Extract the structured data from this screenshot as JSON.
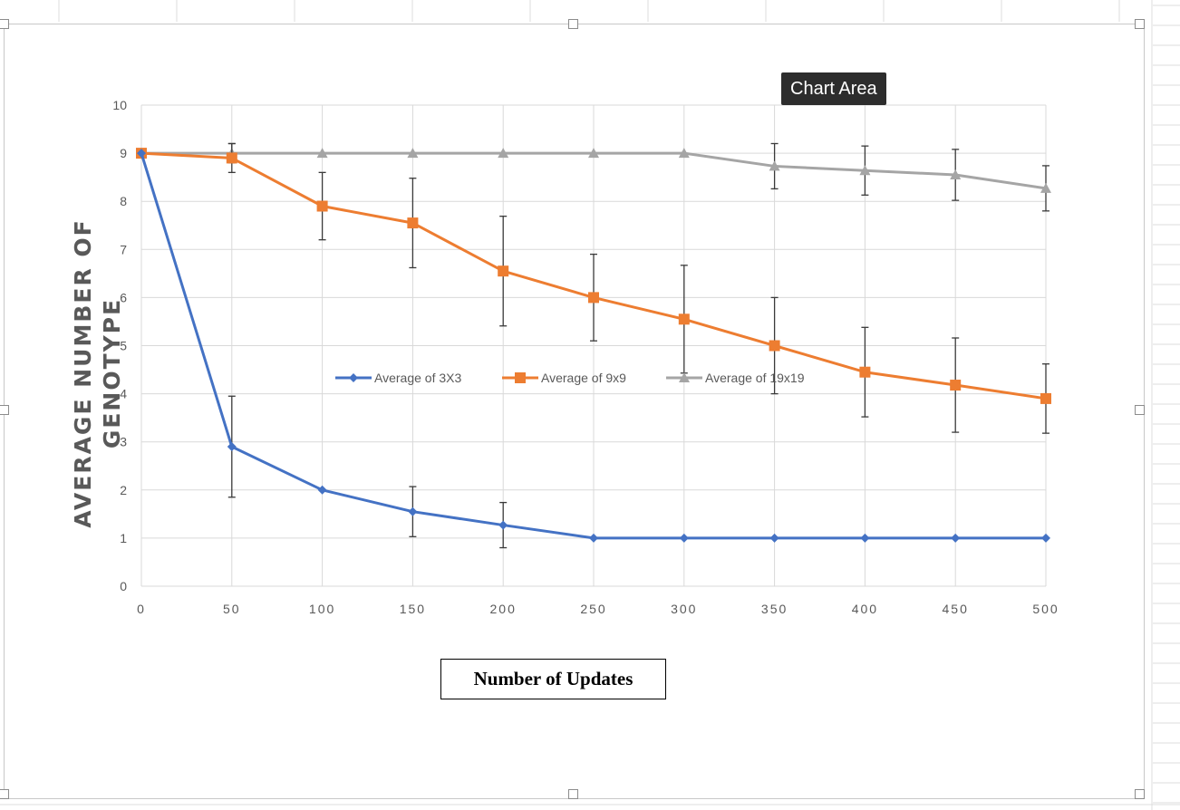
{
  "tooltip": {
    "text": "Chart Area"
  },
  "chart_data": {
    "type": "line",
    "title": "",
    "xlabel": "Number of Updates",
    "ylabel": "AVERAGE NUMBER OF GENOTYPE",
    "x": [
      0,
      50,
      100,
      150,
      200,
      250,
      300,
      350,
      400,
      450,
      500
    ],
    "xlim": [
      0,
      500
    ],
    "ylim": [
      0,
      10
    ],
    "x_ticks": [
      "0",
      "50",
      "100",
      "150",
      "200",
      "250",
      "300",
      "350",
      "400",
      "450",
      "500"
    ],
    "y_ticks": [
      "0",
      "1",
      "2",
      "3",
      "4",
      "5",
      "6",
      "7",
      "8",
      "9",
      "10"
    ],
    "grid": true,
    "legend_position": "center",
    "series": [
      {
        "name": "Average of 3X3",
        "color": "#4472c4",
        "marker": "diamond",
        "values": [
          9,
          2.9,
          2.0,
          1.55,
          1.27,
          1.0,
          1.0,
          1.0,
          1.0,
          1.0,
          1.0
        ],
        "error": [
          null,
          1.05,
          null,
          0.52,
          0.47,
          null,
          null,
          null,
          null,
          null,
          null
        ]
      },
      {
        "name": "Average of 9x9",
        "color": "#ed7d31",
        "marker": "square",
        "values": [
          9,
          8.9,
          7.9,
          7.55,
          6.55,
          6.0,
          5.55,
          5.0,
          4.45,
          4.18,
          3.9
        ],
        "error": [
          null,
          0.3,
          0.7,
          0.93,
          1.14,
          0.9,
          1.12,
          1.0,
          0.93,
          0.98,
          0.72
        ]
      },
      {
        "name": "Average of 19x19",
        "color": "#a5a5a5",
        "marker": "triangle",
        "values": [
          9,
          9,
          9,
          9,
          9,
          9,
          9,
          8.73,
          8.64,
          8.55,
          8.27
        ],
        "error": [
          null,
          0.2,
          null,
          null,
          null,
          null,
          null,
          0.47,
          0.51,
          0.53,
          0.47
        ]
      }
    ]
  }
}
